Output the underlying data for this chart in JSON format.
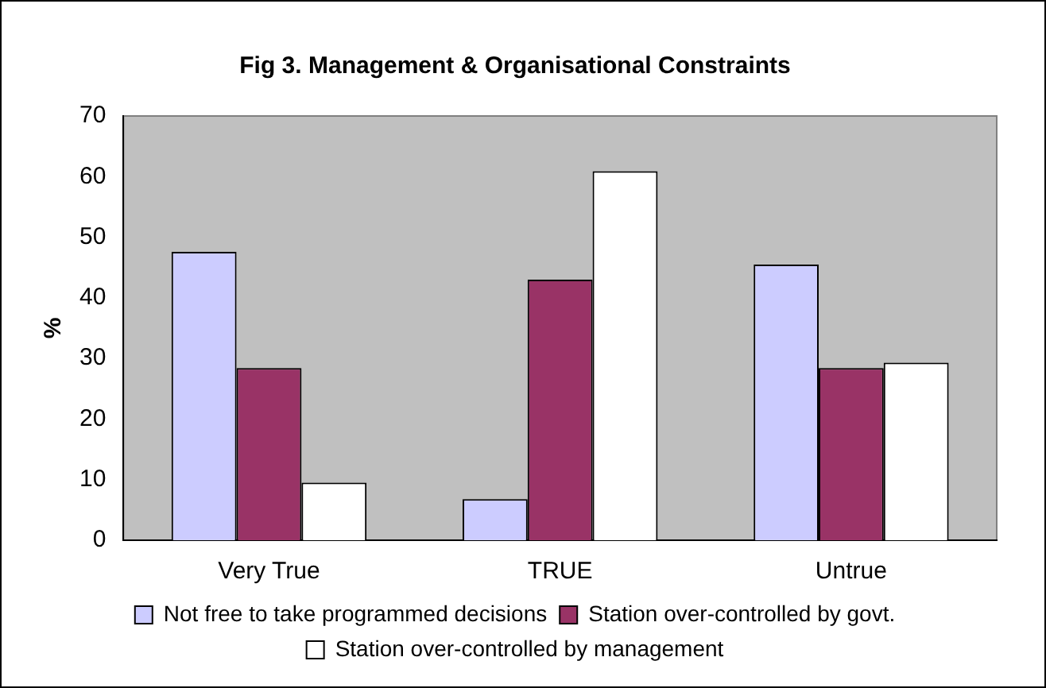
{
  "chart_data": {
    "type": "bar",
    "title": "Fig 3. Management & Organisational Constraints",
    "ylabel": "%",
    "categories": [
      "Very True",
      "TRUE",
      "Untrue"
    ],
    "series": [
      {
        "name": "Not free to take programmed decisions",
        "color": "#ccccff",
        "values": [
          47.6,
          6.8,
          45.5
        ]
      },
      {
        "name": "Station over-controlled by govt.",
        "color": "#993366",
        "values": [
          28.4,
          43,
          28.4
        ]
      },
      {
        "name": "Station over-controlled by management",
        "color": "#ffffff",
        "values": [
          9.5,
          60.9,
          29.3
        ]
      }
    ],
    "ylim": [
      0,
      70
    ],
    "yticks": [
      0,
      10,
      20,
      30,
      40,
      50,
      60,
      70
    ],
    "grid": false,
    "legend": "bottom"
  }
}
